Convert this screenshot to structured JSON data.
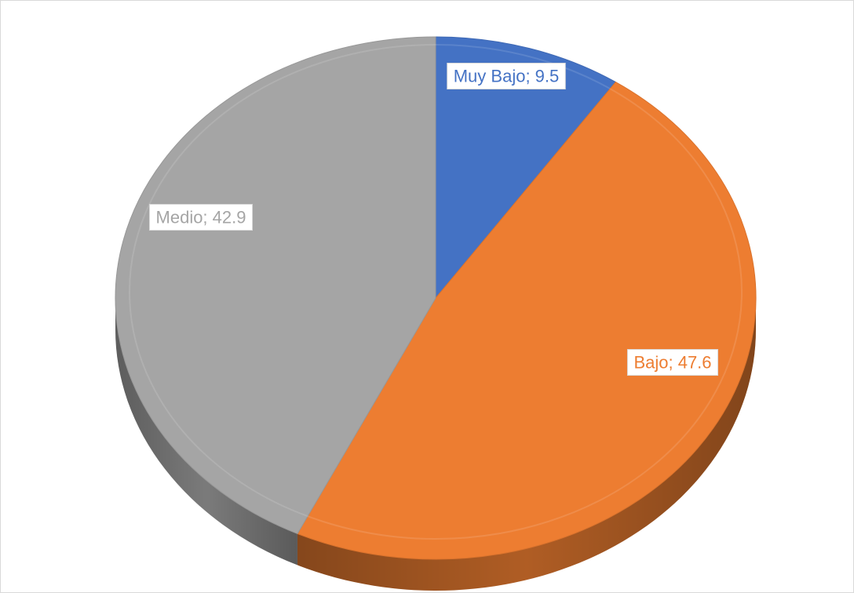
{
  "chart_data": {
    "type": "pie",
    "title": "",
    "view": "3d",
    "slices": [
      {
        "name": "Muy Bajo",
        "value": 9.5,
        "label": "Muy Bajo; 9.5",
        "color": "#4472c4",
        "label_color": "#4472c4"
      },
      {
        "name": "Bajo",
        "value": 47.6,
        "label": "Bajo; 47.6",
        "color": "#ed7d31",
        "label_color": "#ed7d31"
      },
      {
        "name": "Medio",
        "value": 42.9,
        "label": "Medio; 42.9",
        "color": "#a5a5a5",
        "label_color": "#a5a5a5"
      }
    ],
    "legend": "none"
  }
}
